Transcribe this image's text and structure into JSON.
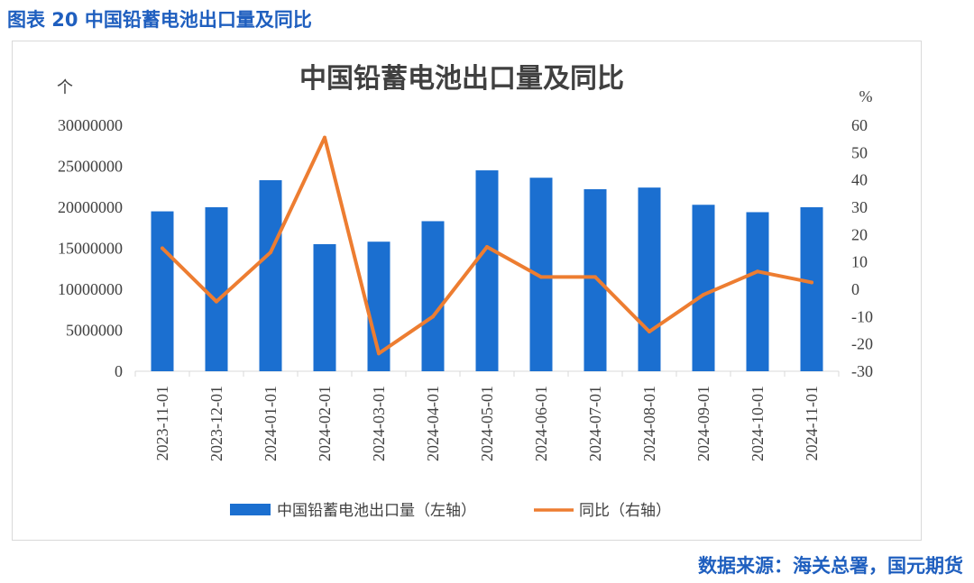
{
  "figure_caption": "图表 20 中国铅蓄电池出口量及同比",
  "source_note": "数据来源：海关总署，国元期货",
  "colors": {
    "bar": "#1b6fd0",
    "line": "#ed7d31",
    "caption": "#1f5fbf",
    "axis": "#d9d9d9",
    "text": "#404040"
  },
  "chart_data": {
    "type": "bar",
    "title": "中国铅蓄电池出口量及同比",
    "left_unit": "个",
    "right_unit": "%",
    "categories": [
      "2023-11-01",
      "2023-12-01",
      "2024-01-01",
      "2024-02-01",
      "2024-03-01",
      "2024-04-01",
      "2024-05-01",
      "2024-06-01",
      "2024-07-01",
      "2024-08-01",
      "2024-09-01",
      "2024-10-01",
      "2024-11-01"
    ],
    "series": [
      {
        "name": "中国铅蓄电池出口量（左轴）",
        "type": "bar",
        "axis": "left",
        "values": [
          19500000,
          20000000,
          23300000,
          15500000,
          15800000,
          18300000,
          24500000,
          23600000,
          22200000,
          22400000,
          20300000,
          19400000,
          20000000
        ]
      },
      {
        "name": "同比（右轴）",
        "type": "line",
        "axis": "right",
        "values": [
          15,
          -4.5,
          13.5,
          55.5,
          -23.5,
          -10,
          15.5,
          4.5,
          4.5,
          -15.5,
          -2,
          6.5,
          2.5
        ]
      }
    ],
    "y_left": {
      "min": 0,
      "max": 30000000,
      "ticks": [
        "30000000",
        "25000000",
        "20000000",
        "15000000",
        "10000000",
        "5000000",
        "0"
      ]
    },
    "y_right": {
      "min": -30,
      "max": 60,
      "ticks": [
        "60",
        "50",
        "40",
        "30",
        "20",
        "10",
        "0",
        "-10",
        "-20",
        "-30"
      ]
    },
    "legend_position": "bottom"
  }
}
